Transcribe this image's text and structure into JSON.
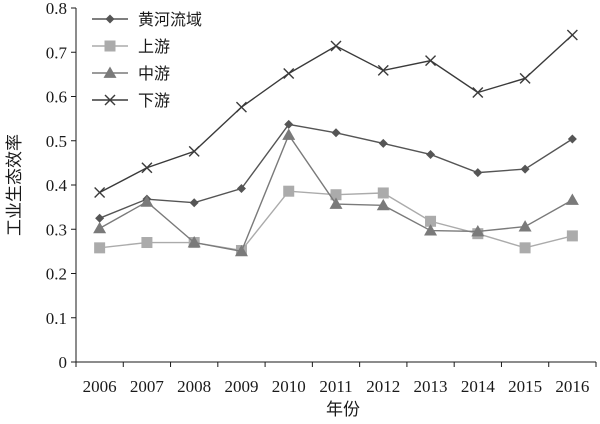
{
  "chart_data": {
    "type": "line",
    "title": "",
    "xlabel": "年份",
    "ylabel": "工业生态效率",
    "ylim": [
      0,
      0.8
    ],
    "yticks": [
      "0",
      "0.1",
      "0.2",
      "0.3",
      "0.4",
      "0.5",
      "0.6",
      "0.7",
      "0.8"
    ],
    "categories": [
      "2006",
      "2007",
      "2008",
      "2009",
      "2010",
      "2011",
      "2012",
      "2013",
      "2014",
      "2015",
      "2016"
    ],
    "legend_position": "top-left",
    "grid": false,
    "series": [
      {
        "name": "黄河流域",
        "marker": "diamond",
        "color": "#555555",
        "marker_color": "#555555",
        "values": [
          0.325,
          0.368,
          0.36,
          0.392,
          0.537,
          0.518,
          0.494,
          0.469,
          0.428,
          0.436,
          0.504
        ]
      },
      {
        "name": "上游",
        "marker": "square",
        "color": "#ababab",
        "marker_color": "#ababab",
        "values": [
          0.258,
          0.27,
          0.27,
          0.252,
          0.386,
          0.378,
          0.382,
          0.318,
          0.29,
          0.258,
          0.285
        ]
      },
      {
        "name": "中游",
        "marker": "triangle",
        "color": "#7a7a7a",
        "marker_color": "#7a7a7a",
        "values": [
          0.302,
          0.362,
          0.27,
          0.25,
          0.513,
          0.357,
          0.354,
          0.297,
          0.295,
          0.306,
          0.366
        ]
      },
      {
        "name": "下游",
        "marker": "cross",
        "color": "#3a3a3a",
        "marker_color": "#3a3a3a",
        "values": [
          0.383,
          0.439,
          0.476,
          0.576,
          0.652,
          0.714,
          0.659,
          0.681,
          0.609,
          0.641,
          0.739
        ]
      }
    ]
  }
}
